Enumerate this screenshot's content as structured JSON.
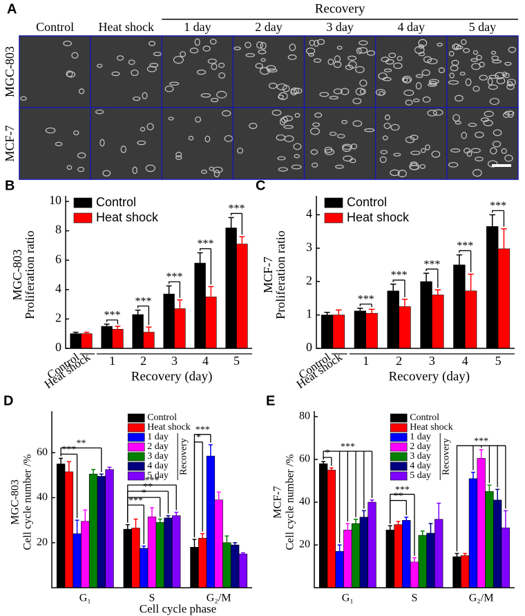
{
  "panel_a": {
    "panel": "A",
    "group_label": "Recovery",
    "columns": [
      "Control",
      "Heat shock",
      "1 day",
      "2 day",
      "3 day",
      "4 day",
      "5 day"
    ],
    "rows": [
      "MGC-803",
      "MCF-7"
    ]
  },
  "chart_data": [
    {
      "type": "bar",
      "panel": "B",
      "ylabel": [
        "MGC-803",
        "Proliferation ratio"
      ],
      "xlabel": "Recovery (day)",
      "categories": [
        null,
        "1",
        "2",
        "3",
        "4",
        "5"
      ],
      "baseline_labels": [
        "Control",
        "Heat shock"
      ],
      "ylim": [
        0,
        10
      ],
      "yticks": [
        0,
        2,
        4,
        6,
        8,
        10
      ],
      "legend": "top-left",
      "series": [
        {
          "name": "Control",
          "color": "#000000",
          "values": [
            1.0,
            1.5,
            2.3,
            3.7,
            5.8,
            8.2
          ],
          "errors": [
            0.1,
            0.15,
            0.3,
            0.55,
            0.7,
            0.7
          ]
        },
        {
          "name": "Heat shock",
          "color": "#ff0000",
          "values": [
            1.0,
            1.3,
            1.1,
            2.7,
            3.5,
            7.1
          ],
          "errors": [
            0.1,
            0.2,
            0.35,
            0.6,
            0.7,
            0.5
          ]
        }
      ],
      "annotations": [
        {
          "text": "***",
          "category": "1",
          "between": [
            "Control",
            "Heat shock"
          ]
        },
        {
          "text": "***",
          "category": "2",
          "between": [
            "Control",
            "Heat shock"
          ]
        },
        {
          "text": "***",
          "category": "3",
          "between": [
            "Control",
            "Heat shock"
          ]
        },
        {
          "text": "***",
          "category": "4",
          "between": [
            "Control",
            "Heat shock"
          ]
        },
        {
          "text": "***",
          "category": "5",
          "between": [
            "Control",
            "Heat shock"
          ]
        }
      ]
    },
    {
      "type": "bar",
      "panel": "C",
      "ylabel": [
        "MCF-7",
        "Proliferation ratio"
      ],
      "xlabel": "Recovery (day)",
      "categories": [
        null,
        "1",
        "2",
        "3",
        "4",
        "5"
      ],
      "baseline_labels": [
        "Control",
        "Heat shock"
      ],
      "ylim": [
        0,
        4.4
      ],
      "yticks": [
        0,
        1,
        2,
        3,
        4
      ],
      "legend": "top-left",
      "series": [
        {
          "name": "Control",
          "color": "#000000",
          "values": [
            1.0,
            1.12,
            1.72,
            2.0,
            2.5,
            3.65
          ],
          "errors": [
            0.08,
            0.08,
            0.2,
            0.25,
            0.3,
            0.35
          ]
        },
        {
          "name": "Heat shock",
          "color": "#ff0000",
          "values": [
            1.0,
            1.05,
            1.25,
            1.6,
            1.72,
            2.98
          ],
          "errors": [
            0.15,
            0.12,
            0.22,
            0.15,
            0.5,
            0.6
          ]
        }
      ],
      "annotations": [
        {
          "text": "***",
          "category": "1",
          "between": [
            "Control",
            "Heat shock"
          ]
        },
        {
          "text": "***",
          "category": "2",
          "between": [
            "Control",
            "Heat shock"
          ]
        },
        {
          "text": "***",
          "category": "3",
          "between": [
            "Control",
            "Heat shock"
          ]
        },
        {
          "text": "***",
          "category": "4",
          "between": [
            "Control",
            "Heat shock"
          ]
        },
        {
          "text": "***",
          "category": "5",
          "between": [
            "Control",
            "Heat shock"
          ]
        }
      ]
    },
    {
      "type": "bar",
      "panel": "D",
      "ylabel": [
        "MGC-803",
        "Cell cycle number /%"
      ],
      "xlabel": "Cell cycle phase",
      "categories": [
        "G₁",
        "S",
        "G₂/M"
      ],
      "ylim": [
        0,
        76
      ],
      "yticks": [
        20,
        40,
        60
      ],
      "legend": "top-right",
      "legend_group": "Recovery",
      "series": [
        {
          "name": "Control",
          "color": "#000000",
          "values": [
            55,
            26,
            18
          ],
          "errors": [
            2.5,
            2,
            3.5
          ]
        },
        {
          "name": "Heat shock",
          "color": "#ff0000",
          "values": [
            51.5,
            26.5,
            22
          ],
          "errors": [
            4.5,
            4,
            2
          ]
        },
        {
          "name": "1 day",
          "color": "#0000ff",
          "values": [
            24,
            17.5,
            58.5
          ],
          "errors": [
            6,
            1,
            5
          ]
        },
        {
          "name": "2 day",
          "color": "#ff00ff",
          "values": [
            29.5,
            31.5,
            39
          ],
          "errors": [
            5,
            4,
            3.5
          ]
        },
        {
          "name": "3 day",
          "color": "#008000",
          "values": [
            50.5,
            29,
            20
          ],
          "errors": [
            2,
            1.5,
            3
          ]
        },
        {
          "name": "4 day",
          "color": "#000080",
          "values": [
            49.5,
            31,
            19
          ],
          "errors": [
            1,
            1,
            1
          ]
        },
        {
          "name": "5 day",
          "color": "#8000ff",
          "values": [
            52.5,
            32,
            15
          ],
          "errors": [
            1,
            1.5,
            0.5
          ]
        }
      ],
      "annotations": [
        {
          "text": "***",
          "category": "G₁",
          "between": [
            "Control",
            "1 day"
          ]
        },
        {
          "text": "**",
          "category": "G₁",
          "between": [
            "Control",
            "4 day"
          ]
        },
        {
          "text": "***",
          "category": "S",
          "between": [
            "Control",
            "1 day"
          ]
        },
        {
          "text": "*",
          "category": "S",
          "between": [
            "Control",
            "3 day"
          ]
        },
        {
          "text": "**",
          "category": "S",
          "between": [
            "Control",
            "4 day"
          ]
        },
        {
          "text": "***",
          "category": "S",
          "between": [
            "Control",
            "5 day"
          ]
        },
        {
          "text": "*",
          "category": "G₂/M",
          "between": [
            "Control",
            "Heat shock"
          ]
        },
        {
          "text": "***",
          "category": "G₂/M",
          "between": [
            "Control",
            "1 day"
          ]
        }
      ]
    },
    {
      "type": "bar",
      "panel": "E",
      "ylabel": [
        "MCF-7",
        "Cell cycle number /%"
      ],
      "xlabel": "Cell cycle phase",
      "categories": [
        "G₁",
        "S",
        "G₂/M"
      ],
      "ylim": [
        0,
        80
      ],
      "yticks": [
        20,
        40,
        60,
        80
      ],
      "legend": "top-right",
      "legend_group": "Recovery",
      "series": [
        {
          "name": "Control",
          "color": "#000000",
          "values": [
            58,
            27,
            14.5
          ],
          "errors": [
            1,
            2,
            1.5
          ]
        },
        {
          "name": "Heat shock",
          "color": "#ff0000",
          "values": [
            55,
            29.5,
            15
          ],
          "errors": [
            1,
            1.5,
            1
          ]
        },
        {
          "name": "1 day",
          "color": "#0000ff",
          "values": [
            17,
            31.5,
            51
          ],
          "errors": [
            3,
            1.5,
            3
          ]
        },
        {
          "name": "2 day",
          "color": "#ff00ff",
          "values": [
            27,
            12,
            60.5
          ],
          "errors": [
            3,
            2,
            4
          ]
        },
        {
          "name": "3 day",
          "color": "#008000",
          "values": [
            30,
            24.5,
            45
          ],
          "errors": [
            2,
            2,
            3
          ]
        },
        {
          "name": "4 day",
          "color": "#000080",
          "values": [
            33,
            25.5,
            41
          ],
          "errors": [
            3,
            4.5,
            5
          ]
        },
        {
          "name": "5 day",
          "color": "#8000ff",
          "values": [
            40,
            32,
            28
          ],
          "errors": [
            1,
            7.5,
            8
          ]
        }
      ],
      "annotations": [
        {
          "text": "*",
          "category": "G₁",
          "between": [
            "Control",
            "Heat shock"
          ]
        },
        {
          "text": "***",
          "category": "G₁",
          "between": [
            "Control",
            "1 day",
            "2 day",
            "3 day",
            "4 day",
            "5 day"
          ]
        },
        {
          "text": "**",
          "category": "S",
          "between": [
            "Control",
            "1 day"
          ]
        },
        {
          "text": "***",
          "category": "S",
          "between": [
            "Control",
            "2 day"
          ]
        },
        {
          "text": "***",
          "category": "G₂/M",
          "between": [
            "Control",
            "1 day",
            "2 day",
            "3 day",
            "4 day",
            "5 day"
          ]
        }
      ]
    }
  ]
}
